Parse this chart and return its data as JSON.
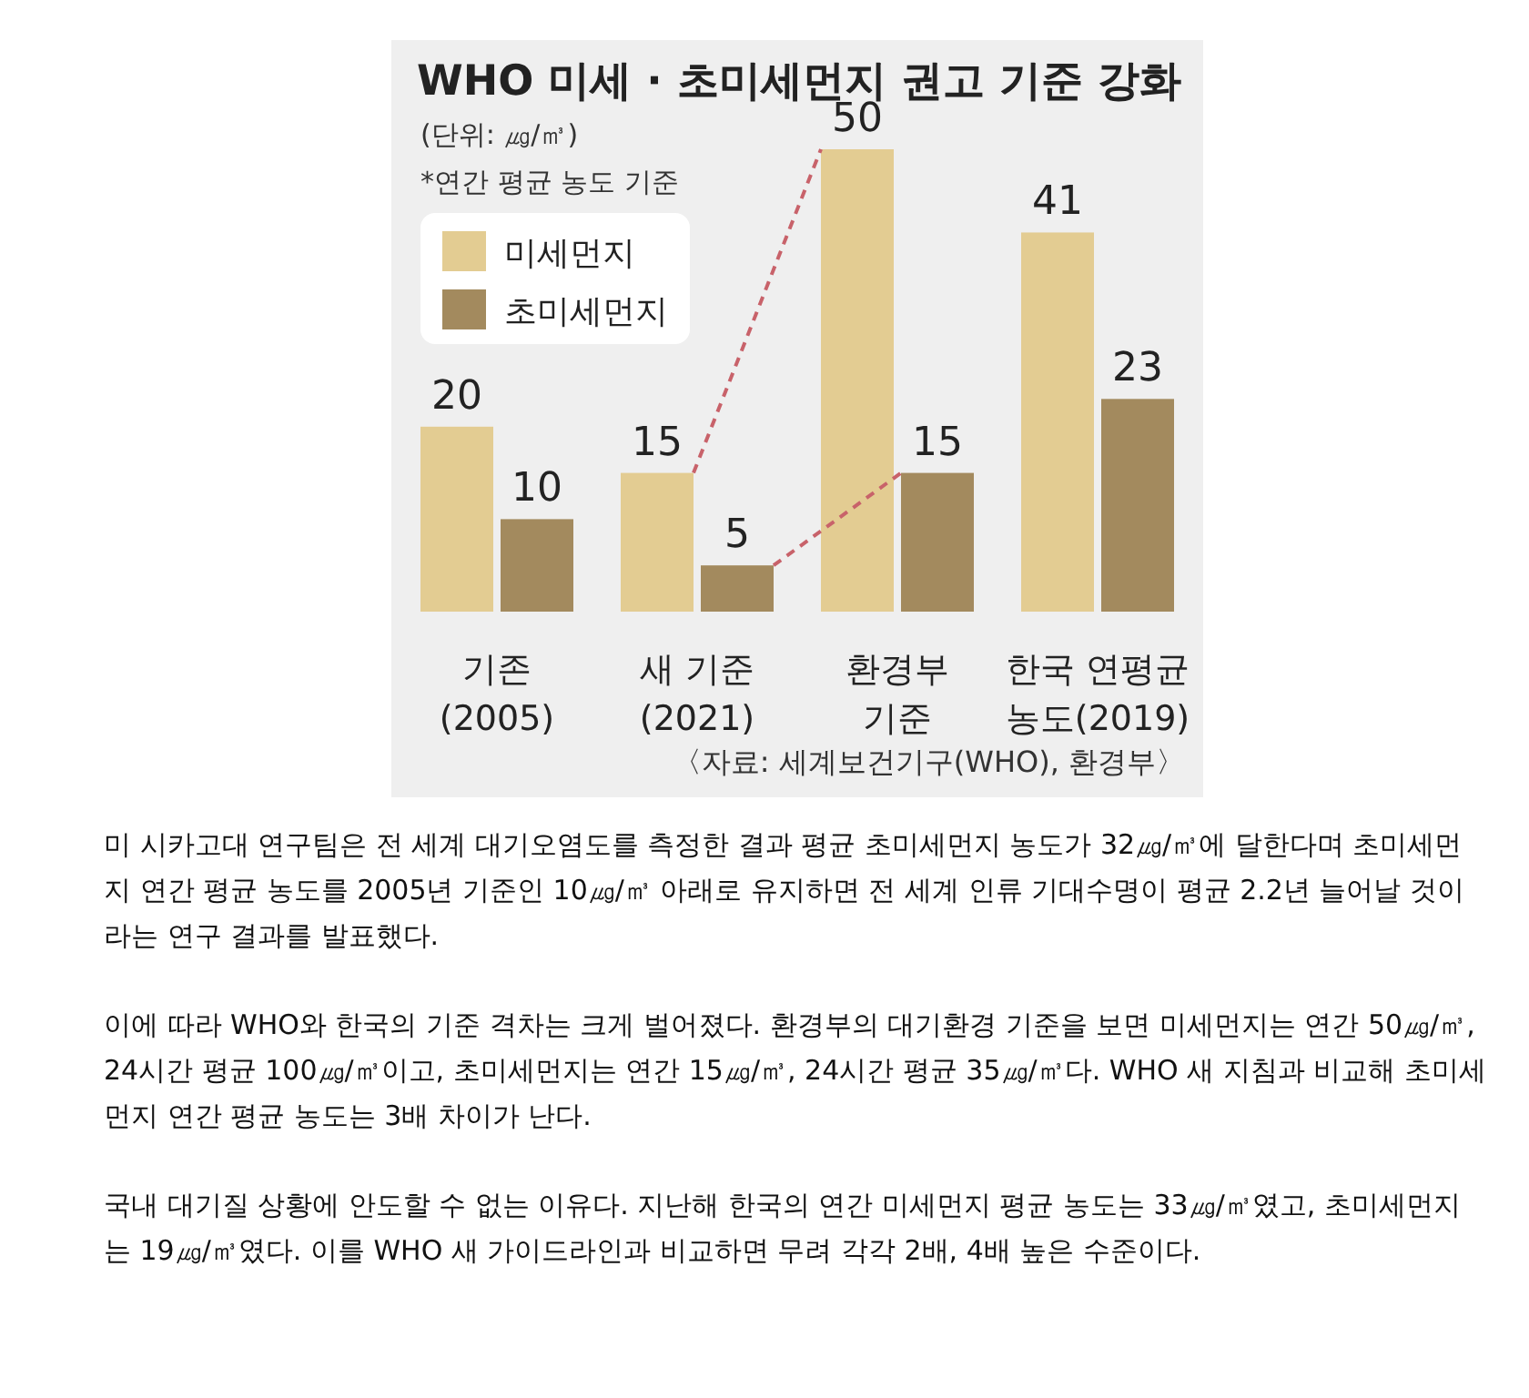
{
  "chart_data": {
    "type": "bar",
    "title": "WHO 미세 · 초미세먼지 권고 기준 강화",
    "subtitle": "(단위: ㎍/㎥)\n*연간 평균 농도 기준",
    "categories": [
      "기존\n(2005)",
      "새 기준\n(2021)",
      "환경부\n기준",
      "한국 연평균\n농도(2019)"
    ],
    "series": [
      {
        "name": "미세먼지",
        "color": "#e3cc92",
        "values": [
          20,
          15,
          50,
          41
        ]
      },
      {
        "name": "초미세먼지",
        "color": "#a38a5e",
        "values": [
          10,
          5,
          15,
          23
        ]
      }
    ],
    "data_labels": true,
    "legend": "top left",
    "annotations": [
      "〈자료: 세계보건기구(WHO), 환경부〉",
      "미 시카고대 연구팀은 전 세계 대기오염도를 측정한 결과 평균 초미세먼지 농도가 32㎍/㎥에 달한다며 초미세먼지 연간 평균 농도를 2005년 기준인 10㎍/㎥ 아래로 유지하면 전 세계 인류 기대수명이 평균 2.2년 늘어날 것이라는 연구 결과를 발표했다.",
      "이에 따라 WHO와 한국의 기준 격차는 크게 벌어졌다. 환경부의 대기환경 기준을 보면 미세먼지는 연간 50㎍/㎥, 24시간 평균 100㎍/㎥이고, 초미세먼지는 연간 15㎍/㎥, 24시간 평균 35㎍/㎥다. WHO 새 지침과 비교해 초미세먼지 연간 평균 농도는 3배 차이가 난다.",
      "국내 대기질 상황에 안도할 수 없는 이유다. 지난해 한국의 연간 미세먼지 평균 농도는 33㎍/㎥였고, 초미세먼지는 19㎍/㎥였다. 이를 WHO 새 가이드라인과 비교하면 무려 각각 2배, 4배 높은 수준이다."
    ]
  }
}
